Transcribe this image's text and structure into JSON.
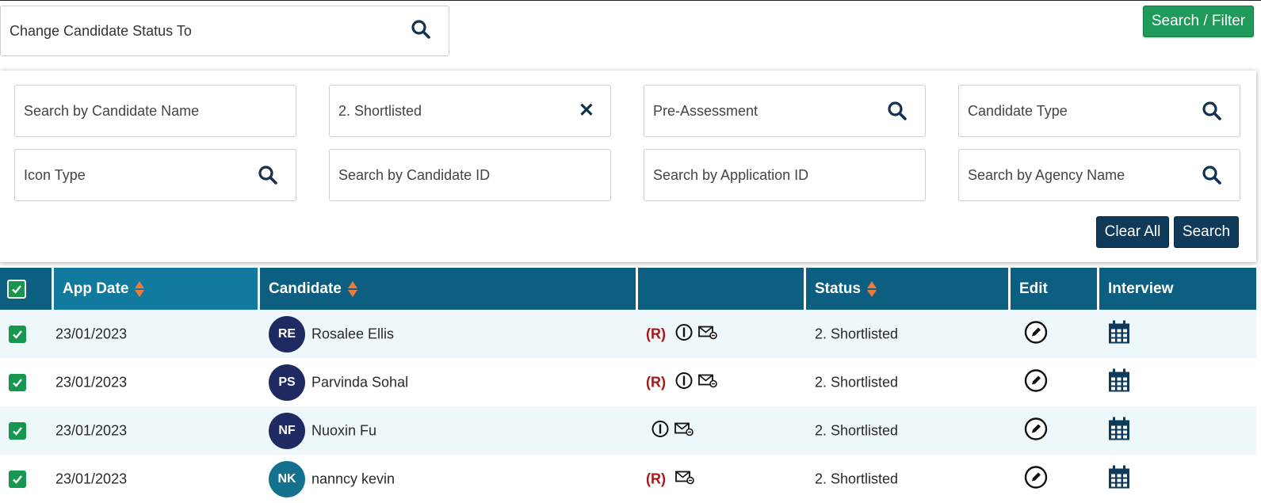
{
  "status_change": {
    "placeholder": "Change Candidate Status To",
    "icon": "search-icon"
  },
  "top_button": {
    "label": "Search / Filter",
    "color": "#1f9a5a"
  },
  "filters": {
    "candidate_name": "Search by Candidate Name",
    "status_value": "2. Shortlisted",
    "pre_assessment": "Pre-Assessment",
    "candidate_type": "Candidate Type",
    "icon_type": "Icon Type",
    "candidate_id": "Search by Candidate ID",
    "application_id": "Search by Application ID",
    "agency_name": "Search by Agency Name"
  },
  "panel_buttons": {
    "clear_all": "Clear All",
    "search": "Search"
  },
  "table": {
    "headers": {
      "app_date": "App Date",
      "candidate": "Candidate",
      "flags": "",
      "status": "Status",
      "edit": "Edit",
      "interview": "Interview"
    },
    "rows": [
      {
        "date": "23/01/2023",
        "initials": "RE",
        "name": "Rosalee Ellis",
        "r_tag": "(R)",
        "info_icon": true,
        "status": "2. Shortlisted",
        "avatar_color": "#1f2a63"
      },
      {
        "date": "23/01/2023",
        "initials": "PS",
        "name": "Parvinda Sohal",
        "r_tag": "(R)",
        "info_icon": true,
        "status": "2. Shortlisted",
        "avatar_color": "#1f2a63"
      },
      {
        "date": "23/01/2023",
        "initials": "NF",
        "name": "Nuoxin Fu",
        "r_tag": "",
        "info_icon": true,
        "status": "2. Shortlisted",
        "avatar_color": "#1f2a63"
      },
      {
        "date": "23/01/2023",
        "initials": "NK",
        "name": "nanncy kevin",
        "r_tag": "(R)",
        "info_icon": false,
        "status": "2. Shortlisted",
        "avatar_color": "#12728e"
      }
    ]
  },
  "colors": {
    "header_bg": "#0d5f82",
    "accent_dark": "#0f3a5a",
    "checkbox": "#17964f",
    "sort_arrow": "#f07a3a",
    "r_tag": "#a8161a"
  }
}
